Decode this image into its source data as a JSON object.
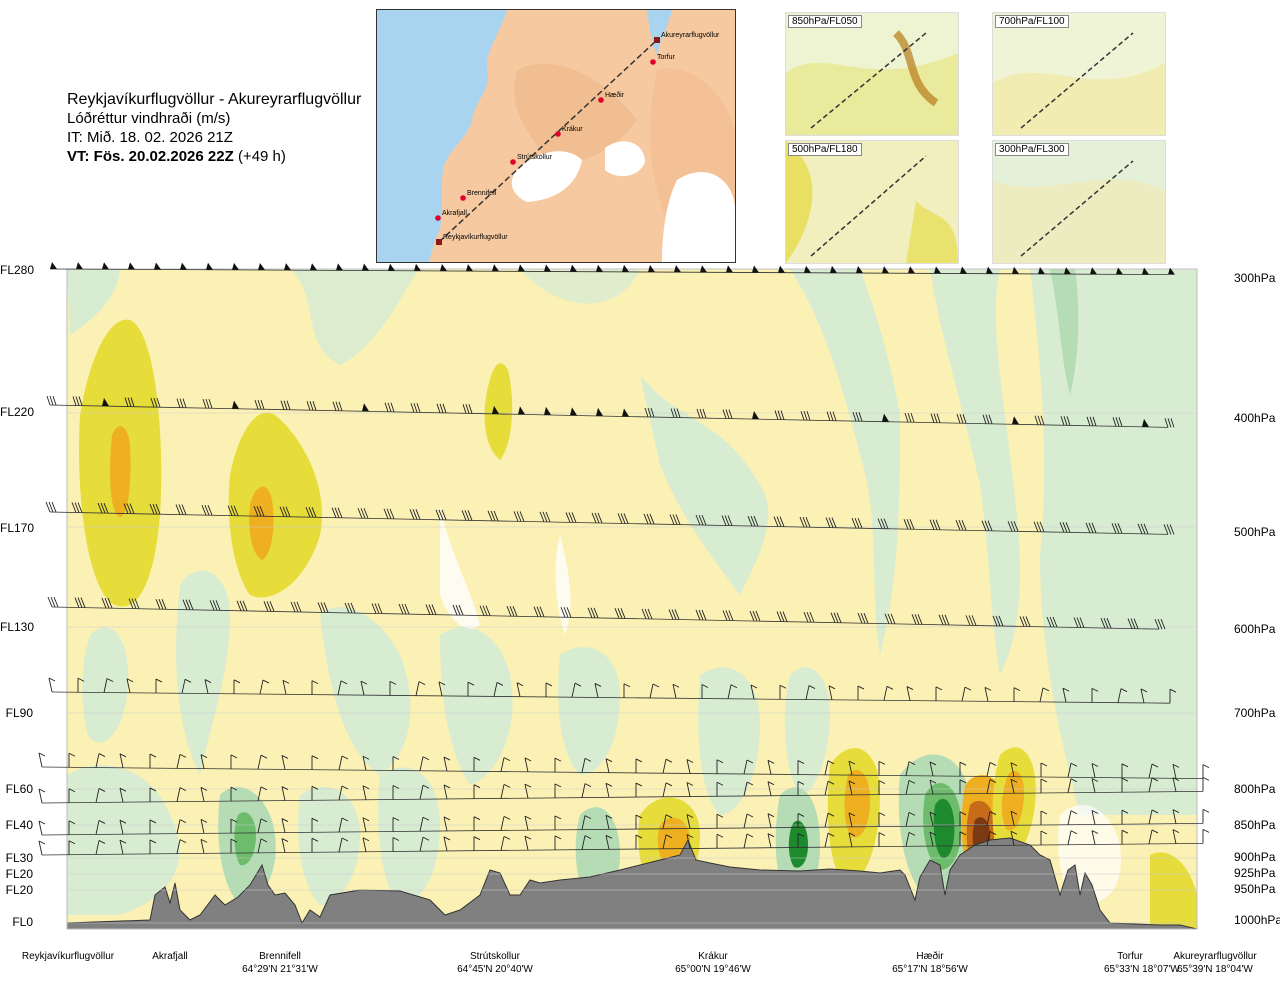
{
  "header": {
    "route": "Reykjavíkurflugvöllur - Akureyrarflugvöllur",
    "parameter": "Lóðréttur vindhraði (m/s)",
    "issue_time": "IT: Mið. 18. 02. 2026 21Z",
    "valid_time_bold": "VT: Fös. 20.02.2026 22Z",
    "valid_time_offset": "(+49 h)"
  },
  "map": {
    "labels": [
      "Akureyrarflugvöllur",
      "Torfur",
      "Hæðir",
      "Krákur",
      "Strútskollur",
      "Brennifell",
      "Akrafjall",
      "Reykjavíkurflugvöllur"
    ],
    "colors": {
      "land": "#f6c9a0",
      "sea": "#a9d4ef",
      "ice": "#ffffff",
      "route": "#333333",
      "waypoint": "#e0002a"
    }
  },
  "thumbnails": [
    {
      "label": "850hPa/FL050"
    },
    {
      "label": "700hPa/FL100"
    },
    {
      "label": "500hPa/FL180"
    },
    {
      "label": "300hPa/FL300"
    }
  ],
  "chart_data": {
    "type": "heatmap",
    "title": "Lóðréttur vindhraði (m/s)",
    "levels_left": [
      "FL280",
      "FL220",
      "FL170",
      "FL130",
      "FL90",
      "FL60",
      "FL40",
      "FL30",
      "FL20",
      "FL20",
      "FL0"
    ],
    "levels_right": [
      "300hPa",
      "400hPa",
      "500hPa",
      "600hPa",
      "700hPa",
      "800hPa",
      "850hPa",
      "900hPa",
      "925hPa",
      "950hPa",
      "1000hPa"
    ],
    "locations": [
      {
        "name": "Reykjavíkurflugvöllur",
        "coord": ""
      },
      {
        "name": "Akrafjall",
        "coord": ""
      },
      {
        "name": "Brennifell",
        "coord": "64°29'N 21°31'W"
      },
      {
        "name": "Strútskollur",
        "coord": "64°45'N 20°40'W"
      },
      {
        "name": "Krákur",
        "coord": "65°00'N 19°46'W"
      },
      {
        "name": "Hæðir",
        "coord": "65°17'N 18°56'W"
      },
      {
        "name": "Torfur",
        "coord": "65°33'N 18°07'W"
      },
      {
        "name": "Akureyrarflugvöllur",
        "coord": "65°39'N 18°04'W"
      }
    ],
    "colors": {
      "background": "#fbf1b4",
      "weak_down": "#d8ecd2",
      "mid_down": "#b5dcb5",
      "strong_down": "#6cbc6c",
      "very_strong_down": "#1e8a2e",
      "weak_up": "#f3e9a2",
      "mid_up": "#e6dc3a",
      "strong_up": "#eeb020",
      "very_strong_up": "#c86b19",
      "extreme_up": "#7c3a12",
      "neutral": "#ffffff",
      "terrain": "#808080"
    }
  }
}
